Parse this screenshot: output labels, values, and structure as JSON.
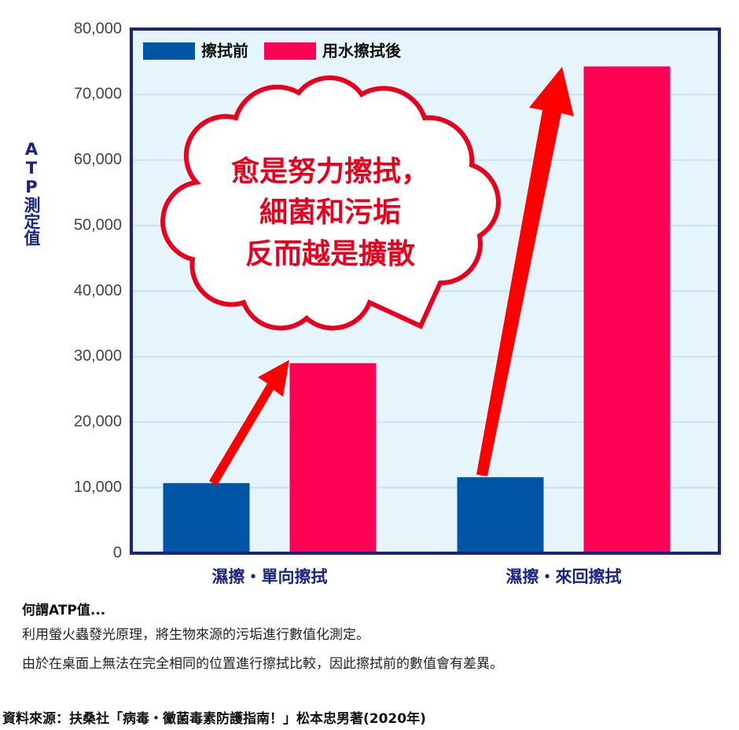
{
  "chart_data": {
    "type": "bar",
    "y_label": "ATP測定值",
    "categories": [
      "濕擦・單向擦拭",
      "濕擦・來回擦拭"
    ],
    "series": [
      {
        "name": "擦拭前",
        "color": "#0055a5",
        "values": [
          10700,
          11600
        ]
      },
      {
        "name": "用水擦拭後",
        "color": "#ff0055",
        "values": [
          29000,
          74300
        ]
      }
    ],
    "ylim": [
      0,
      80000
    ],
    "yticks": [
      0,
      {
        "value": 10000,
        "label": "10,000"
      },
      {
        "value": 20000,
        "label": "20,000"
      },
      {
        "value": 30000,
        "label": "30,000"
      },
      {
        "value": 40000,
        "label": "40,000"
      },
      {
        "value": 50000,
        "label": "50,000"
      },
      {
        "value": 60000,
        "label": "60,000"
      },
      {
        "value": 70000,
        "label": "70,000"
      },
      {
        "value": 80000,
        "label": "80,000"
      }
    ],
    "grid": true,
    "legend": "top-left",
    "annotation": [
      "愈是努力擦拭，",
      "細菌和污垢",
      "反而越是擴散"
    ]
  },
  "notes": {
    "title": "何謂ATP值...",
    "lines": [
      "利用螢火蟲發光原理，將生物來源的污垢進行數值化測定。",
      "由於在桌面上無法在完全相同的位置進行擦拭比較，因此擦拭前的數值會有差異。"
    ],
    "source": "資料來源：扶桑社「病毒・黴菌毒素防護指南！」松本忠男著(2020年)"
  }
}
